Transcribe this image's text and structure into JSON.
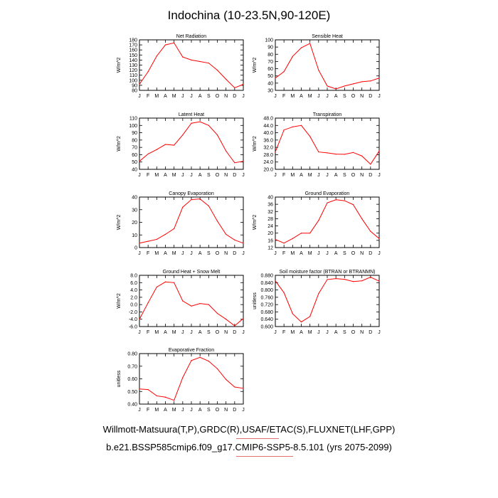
{
  "title": "Indochina (10-23.5N,90-120E)",
  "footer_line1": "Willmott-Matsuura(T,P),GRDC(R),USAF/ETAC(S),FLUXNET(LHF,GPP)",
  "footer_line2": "b.e21.BSSP585cmip6.f09_g17.CMIP6-SSP5-8.5.101 (yrs 2075-2099)",
  "colors": {
    "series": "#ff0000",
    "axis": "#000000",
    "underline": "#e07070"
  },
  "chart_data": [
    {
      "type": "line",
      "title": "Net Radiation",
      "ylabel": "W/m^2",
      "categories": [
        "J",
        "F",
        "M",
        "A",
        "M",
        "J",
        "J",
        "A",
        "S",
        "O",
        "N",
        "D",
        "J"
      ],
      "ylim": [
        80,
        180
      ],
      "yticks": [
        "80",
        "90",
        "100",
        "110",
        "120",
        "130",
        "140",
        "150",
        "160",
        "170",
        "180"
      ],
      "series": [
        {
          "values": [
            92,
            117,
            148,
            170,
            174,
            146,
            140,
            137,
            134,
            120,
            102,
            85,
            92
          ]
        }
      ]
    },
    {
      "type": "line",
      "title": "Sensible Heat",
      "ylabel": "W/m^2",
      "categories": [
        "J",
        "F",
        "M",
        "A",
        "M",
        "J",
        "J",
        "A",
        "S",
        "O",
        "N",
        "D",
        "J"
      ],
      "ylim": [
        30,
        100
      ],
      "yticks": [
        "30",
        "40",
        "50",
        "60",
        "70",
        "80",
        "90",
        "100"
      ],
      "series": [
        {
          "values": [
            47,
            56,
            77,
            89,
            95,
            58,
            36,
            32,
            36,
            39,
            42,
            43,
            47
          ]
        }
      ]
    },
    {
      "type": "line",
      "title": "Latent Heat",
      "ylabel": "W/m^2",
      "categories": [
        "J",
        "F",
        "M",
        "A",
        "M",
        "J",
        "J",
        "A",
        "S",
        "O",
        "N",
        "D",
        "J"
      ],
      "ylim": [
        40,
        110
      ],
      "yticks": [
        "40",
        "50",
        "60",
        "70",
        "80",
        "90",
        "100",
        "110"
      ],
      "series": [
        {
          "values": [
            51,
            61,
            67,
            74,
            73,
            87,
            103,
            105,
            100,
            87,
            65,
            49,
            51
          ]
        }
      ]
    },
    {
      "type": "line",
      "title": "Transpiration",
      "ylabel": "W/m^2",
      "categories": [
        "J",
        "F",
        "M",
        "A",
        "M",
        "J",
        "J",
        "A",
        "S",
        "O",
        "N",
        "D",
        "J"
      ],
      "ylim": [
        20,
        48
      ],
      "yticks": [
        "20.0",
        "24.0",
        "28.0",
        "32.0",
        "36.0",
        "40.0",
        "44.0",
        "48.0"
      ],
      "series": [
        {
          "values": [
            29.5,
            41.5,
            43.2,
            44.0,
            38.0,
            29.5,
            29.0,
            28.3,
            28.2,
            29.2,
            27.3,
            22.8,
            30.0
          ]
        }
      ]
    },
    {
      "type": "line",
      "title": "Canopy Evaporation",
      "ylabel": "W/m^2",
      "categories": [
        "J",
        "F",
        "M",
        "A",
        "M",
        "J",
        "J",
        "A",
        "S",
        "O",
        "N",
        "D",
        "J"
      ],
      "ylim": [
        0,
        40
      ],
      "yticks": [
        "0",
        "10",
        "20",
        "30",
        "40"
      ],
      "series": [
        {
          "values": [
            3.5,
            5.0,
            6.5,
            10.5,
            15.0,
            32.0,
            38.0,
            38.5,
            33.0,
            21.0,
            10.5,
            6.0,
            3.5
          ]
        }
      ]
    },
    {
      "type": "line",
      "title": "Ground Evaporation",
      "ylabel": "W/m^2",
      "categories": [
        "J",
        "F",
        "M",
        "A",
        "M",
        "J",
        "J",
        "A",
        "S",
        "O",
        "N",
        "D",
        "J"
      ],
      "ylim": [
        12,
        40
      ],
      "yticks": [
        "12",
        "16",
        "20",
        "24",
        "28",
        "32",
        "36",
        "40"
      ],
      "series": [
        {
          "values": [
            16.5,
            14.5,
            17.0,
            20.0,
            20.0,
            27.0,
            36.8,
            38.5,
            38.0,
            35.8,
            28.0,
            21.0,
            17.0
          ]
        }
      ]
    },
    {
      "type": "line",
      "title": "Ground Heat + Snow Melt",
      "ylabel": "W/m^2",
      "categories": [
        "J",
        "F",
        "M",
        "A",
        "M",
        "J",
        "J",
        "A",
        "S",
        "O",
        "N",
        "D",
        "J"
      ],
      "ylim": [
        -6,
        8
      ],
      "yticks": [
        "-6.0",
        "-4.0",
        "-2.0",
        "0.0",
        "2.0",
        "4.0",
        "6.0",
        "8.0"
      ],
      "series": [
        {
          "values": [
            -4.0,
            0.5,
            4.8,
            6.2,
            6.0,
            1.0,
            -0.4,
            0.3,
            0.0,
            -2.4,
            -4.0,
            -5.8,
            -3.8
          ]
        }
      ]
    },
    {
      "type": "line",
      "title": "Soil moisture factor (BTRAN or BTRANMN)",
      "ylabel": "unitless",
      "categories": [
        "J",
        "F",
        "M",
        "A",
        "M",
        "J",
        "J",
        "A",
        "S",
        "O",
        "N",
        "D",
        "J"
      ],
      "ylim": [
        0.6,
        0.88
      ],
      "yticks": [
        "0.600",
        "0.640",
        "0.680",
        "0.720",
        "0.760",
        "0.800",
        "0.840",
        "0.880"
      ],
      "series": [
        {
          "values": [
            0.85,
            0.785,
            0.67,
            0.625,
            0.655,
            0.78,
            0.857,
            0.862,
            0.858,
            0.846,
            0.85,
            0.87,
            0.848
          ]
        }
      ]
    },
    {
      "type": "line",
      "title": "Evaporative Fraction",
      "ylabel": "unitless",
      "categories": [
        "J",
        "F",
        "M",
        "A",
        "M",
        "J",
        "J",
        "A",
        "S",
        "O",
        "N",
        "D",
        "J"
      ],
      "ylim": [
        0.4,
        0.8
      ],
      "yticks": [
        "0.40",
        "0.50",
        "0.60",
        "0.70",
        "0.80"
      ],
      "series": [
        {
          "values": [
            0.52,
            0.515,
            0.465,
            0.455,
            0.43,
            0.61,
            0.745,
            0.77,
            0.74,
            0.68,
            0.595,
            0.535,
            0.525
          ]
        }
      ]
    }
  ]
}
